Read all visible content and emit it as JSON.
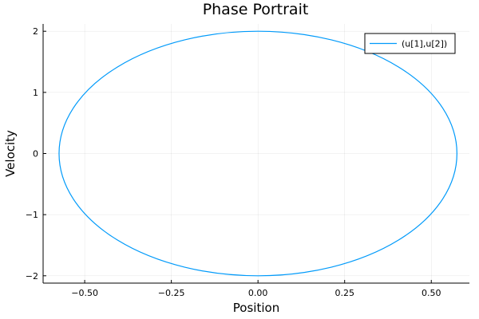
{
  "chart_data": {
    "type": "line",
    "title": "Phase Portrait",
    "xlabel": "Position",
    "ylabel": "Velocity",
    "xlim": [
      -0.62,
      0.61
    ],
    "ylim": [
      -2.12,
      2.12
    ],
    "xticks": [
      -0.5,
      -0.25,
      0.0,
      0.25,
      0.5
    ],
    "xtick_labels": [
      "−0.50",
      "−0.25",
      "0.00",
      "0.25",
      "0.50"
    ],
    "yticks": [
      -2,
      -1,
      0,
      1,
      2
    ],
    "ytick_labels": [
      "−2",
      "−1",
      "0",
      "1",
      "2"
    ],
    "grid": true,
    "legend_position": "top-right",
    "series": [
      {
        "name": "(u[1],u[2])",
        "color": "#009AFA",
        "shape": "ellipse",
        "center": [
          0,
          0
        ],
        "x_radius": 0.574,
        "y_radius": 2.0
      }
    ]
  }
}
